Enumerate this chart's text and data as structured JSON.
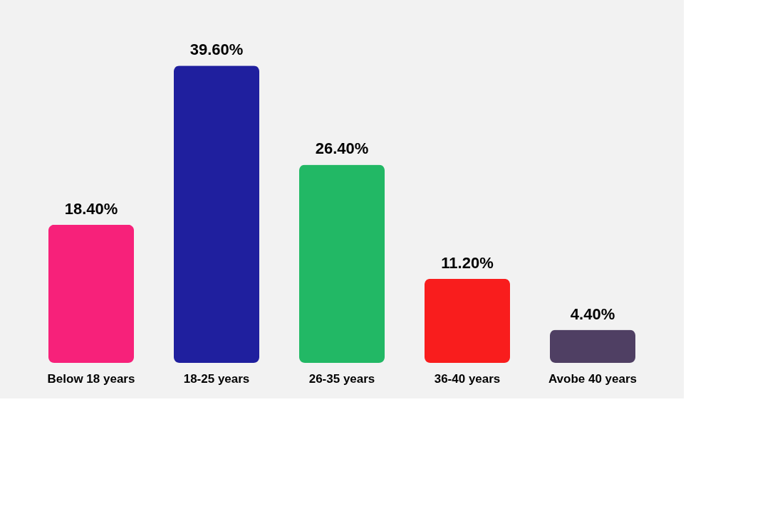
{
  "chart_data": {
    "type": "bar",
    "categories": [
      "Below 18 years",
      "18-25 years",
      "26-35 years",
      "36-40 years",
      "Avobe 40 years"
    ],
    "values": [
      18.4,
      39.6,
      26.4,
      11.2,
      4.4
    ],
    "colors": [
      "#f7217a",
      "#1f1f9e",
      "#22b865",
      "#f91d1d",
      "#4f3f63"
    ],
    "value_labels": [
      "18.40%",
      "39.60%",
      "26.40%",
      "11.20%",
      "4.40%"
    ],
    "grid": false
  }
}
